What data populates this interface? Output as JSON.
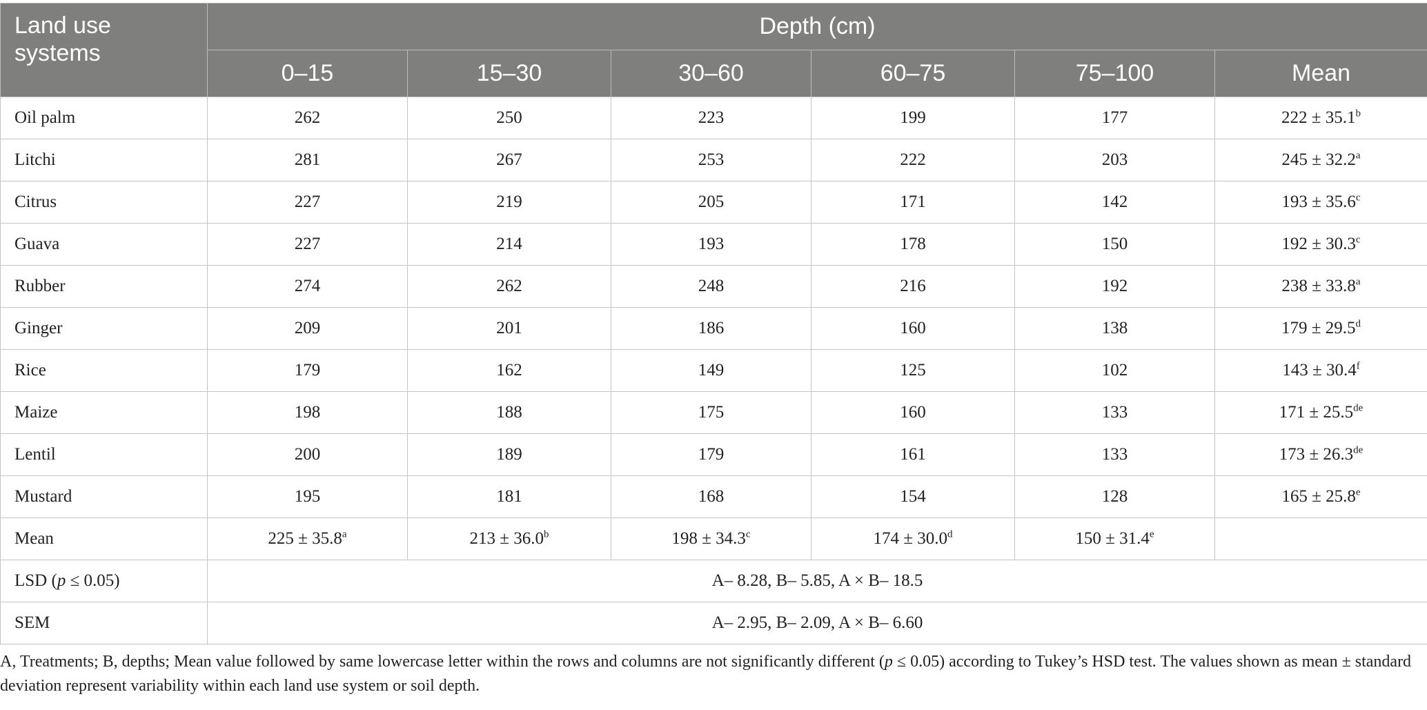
{
  "table": {
    "stub_header": "Land use systems",
    "group_header": "Depth (cm)",
    "columns": [
      "0–15",
      "15–30",
      "30–60",
      "60–75",
      "75–100",
      "Mean"
    ],
    "rows": [
      {
        "label": "Oil palm",
        "values": [
          "262",
          "250",
          "223",
          "199",
          "177"
        ],
        "mean": "222 ± 35.1",
        "mean_letter": "b"
      },
      {
        "label": "Litchi",
        "values": [
          "281",
          "267",
          "253",
          "222",
          "203"
        ],
        "mean": "245 ± 32.2",
        "mean_letter": "a"
      },
      {
        "label": "Citrus",
        "values": [
          "227",
          "219",
          "205",
          "171",
          "142"
        ],
        "mean": "193 ± 35.6",
        "mean_letter": "c"
      },
      {
        "label": "Guava",
        "values": [
          "227",
          "214",
          "193",
          "178",
          "150"
        ],
        "mean": "192 ± 30.3",
        "mean_letter": "c"
      },
      {
        "label": "Rubber",
        "values": [
          "274",
          "262",
          "248",
          "216",
          "192"
        ],
        "mean": "238 ± 33.8",
        "mean_letter": "a"
      },
      {
        "label": "Ginger",
        "values": [
          "209",
          "201",
          "186",
          "160",
          "138"
        ],
        "mean": "179 ± 29.5",
        "mean_letter": "d"
      },
      {
        "label": "Rice",
        "values": [
          "179",
          "162",
          "149",
          "125",
          "102"
        ],
        "mean": "143 ± 30.4",
        "mean_letter": "f"
      },
      {
        "label": "Maize",
        "values": [
          "198",
          "188",
          "175",
          "160",
          "133"
        ],
        "mean": "171 ± 25.5",
        "mean_letter": "de"
      },
      {
        "label": "Lentil",
        "values": [
          "200",
          "189",
          "179",
          "161",
          "133"
        ],
        "mean": "173 ± 26.3",
        "mean_letter": "de"
      },
      {
        "label": "Mustard",
        "values": [
          "195",
          "181",
          "168",
          "154",
          "128"
        ],
        "mean": "165 ± 25.8",
        "mean_letter": "e"
      }
    ],
    "mean_row": {
      "label": "Mean",
      "values": [
        {
          "value": "225 ± 35.8",
          "letter": "a"
        },
        {
          "value": "213 ± 36.0",
          "letter": "b"
        },
        {
          "value": "198 ± 34.3",
          "letter": "c"
        },
        {
          "value": "174 ± 30.0",
          "letter": "d"
        },
        {
          "value": "150 ± 31.4",
          "letter": "e"
        }
      ]
    },
    "lsd_row": {
      "label_pre": "LSD (",
      "label_var": "p",
      "label_post": " ≤ 0.05)",
      "value": "A– 8.28, B– 5.85, A × B– 18.5"
    },
    "sem_row": {
      "label": "SEM",
      "value": "A– 2.95, B– 2.09, A × B– 6.60"
    }
  },
  "footnote": {
    "part1": "A, Treatments; B, depths; Mean value followed by same lowercase letter within the rows and columns are not significantly different (",
    "var": "p",
    "part2": " ≤ 0.05) according to Tukey’s HSD test. The values shown as mean ± standard deviation represent variability within each land use system or soil depth."
  },
  "colors": {
    "header_bg": "#7f7f7e",
    "header_text": "#ffffff",
    "grid": "#c4c4c4",
    "body_text": "#222222"
  }
}
